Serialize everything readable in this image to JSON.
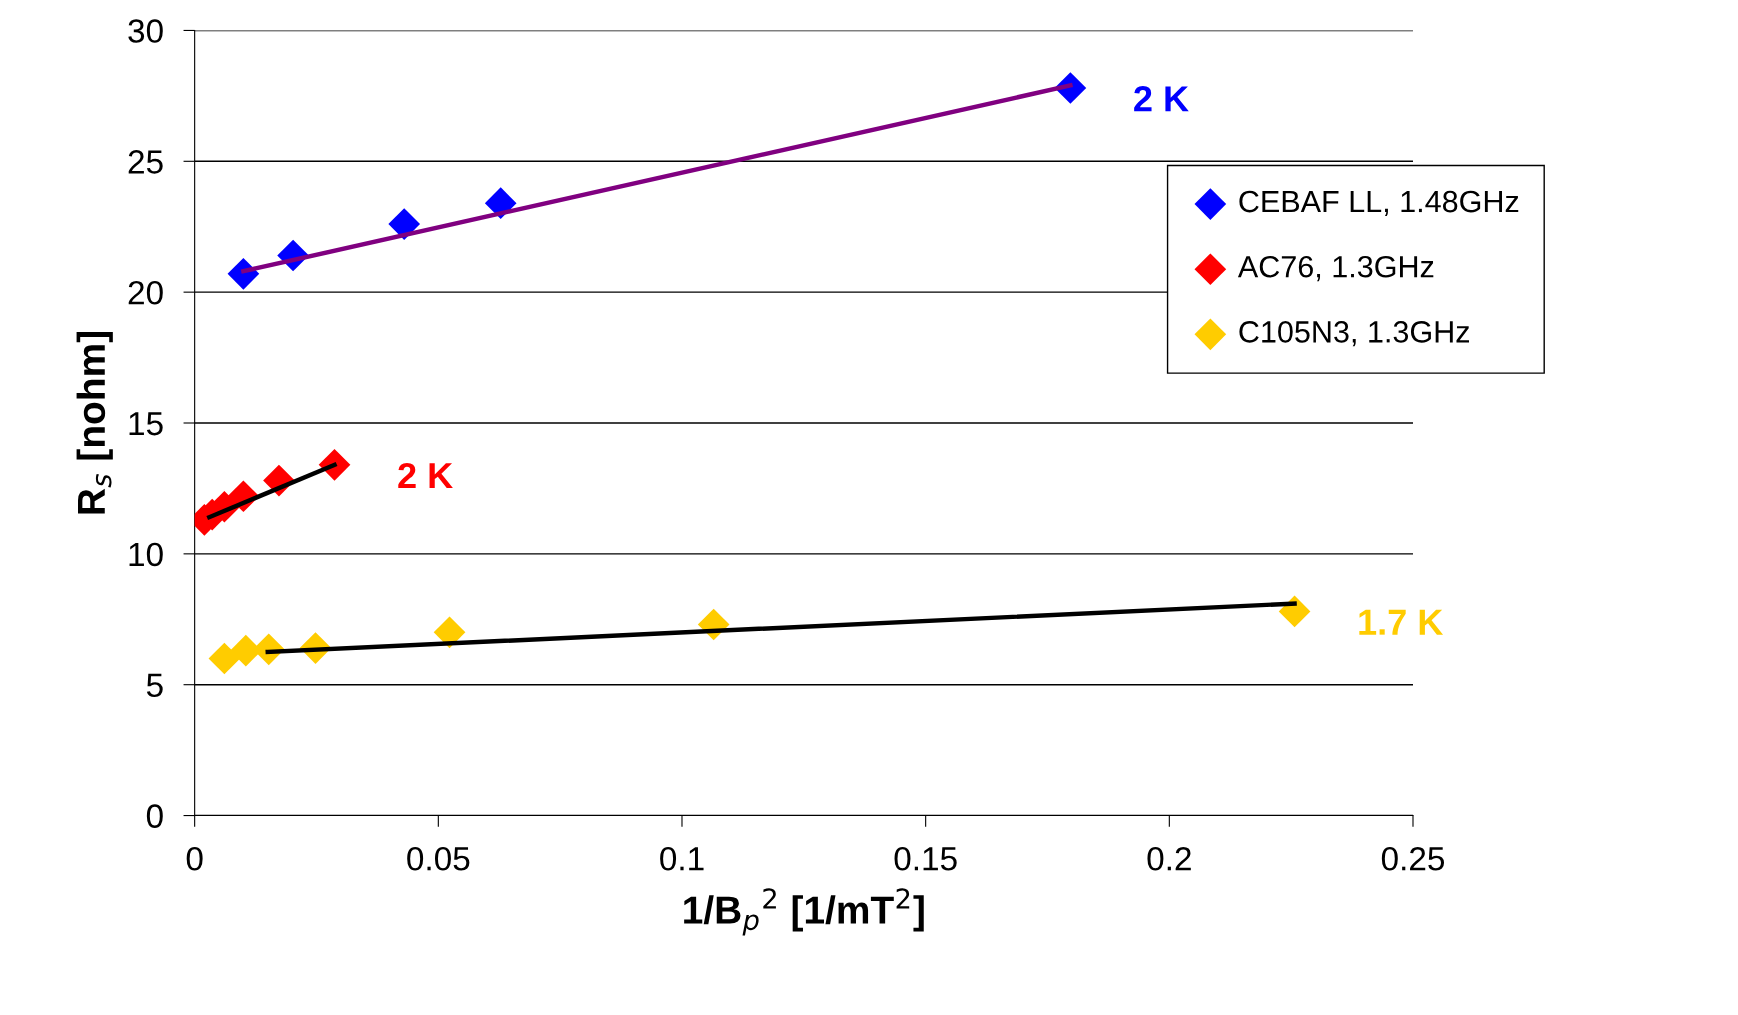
{
  "chart_data": {
    "type": "scatter",
    "xlabel": "1/B$_{p}$$^{2}$ [1/mT$^{2}$]",
    "ylabel": "R$_{s}$ [nohm]",
    "xlim": [
      0,
      0.25
    ],
    "xticks": [
      0,
      0.05,
      0.1,
      0.15,
      0.2,
      0.25
    ],
    "ylim": [
      0,
      30
    ],
    "yticks": [
      0,
      5,
      10,
      15,
      20,
      25,
      30
    ],
    "grid": "y",
    "legend": "right",
    "series": [
      {
        "name": "CEBAF LL, 1.48GHz",
        "color": "#0000ff",
        "marker": "diamond",
        "x": [
          0.01,
          0.0202,
          0.043,
          0.0628,
          0.1797
        ],
        "values": [
          20.7,
          21.4,
          22.6,
          23.4,
          27.8
        ]
      },
      {
        "name": "AC76, 1.3GHz",
        "color": "#ff0000",
        "marker": "diamond",
        "x": [
          0.002,
          0.0036,
          0.0061,
          0.01,
          0.0173,
          0.0287
        ],
        "values": [
          11.3,
          11.5,
          11.8,
          12.2,
          12.8,
          13.4
        ]
      },
      {
        "name": "C105N3, 1.3GHz",
        "color": "#ffcc00",
        "marker": "diamond",
        "x": [
          0.0061,
          0.0105,
          0.0152,
          0.0248,
          0.0523,
          0.1065,
          0.2257
        ],
        "values": [
          6.0,
          6.3,
          6.35,
          6.4,
          7.0,
          7.3,
          7.8
        ]
      },
      {
        "type": "line",
        "color": "#800080",
        "marker": "none",
        "x": [
          0.01,
          0.1797
        ],
        "values": [
          20.8,
          27.9
        ]
      },
      {
        "type": "line",
        "color": "#000000",
        "marker": "none",
        "x": [
          0.003,
          0.0287
        ],
        "values": [
          11.4,
          13.4
        ]
      },
      {
        "type": "line",
        "color": "#000000",
        "marker": "none",
        "x": [
          0.015,
          0.2257
        ],
        "values": [
          6.25,
          8.1
        ]
      }
    ],
    "annotations": [
      "2 K",
      "2 K",
      "1.7 K"
    ]
  }
}
